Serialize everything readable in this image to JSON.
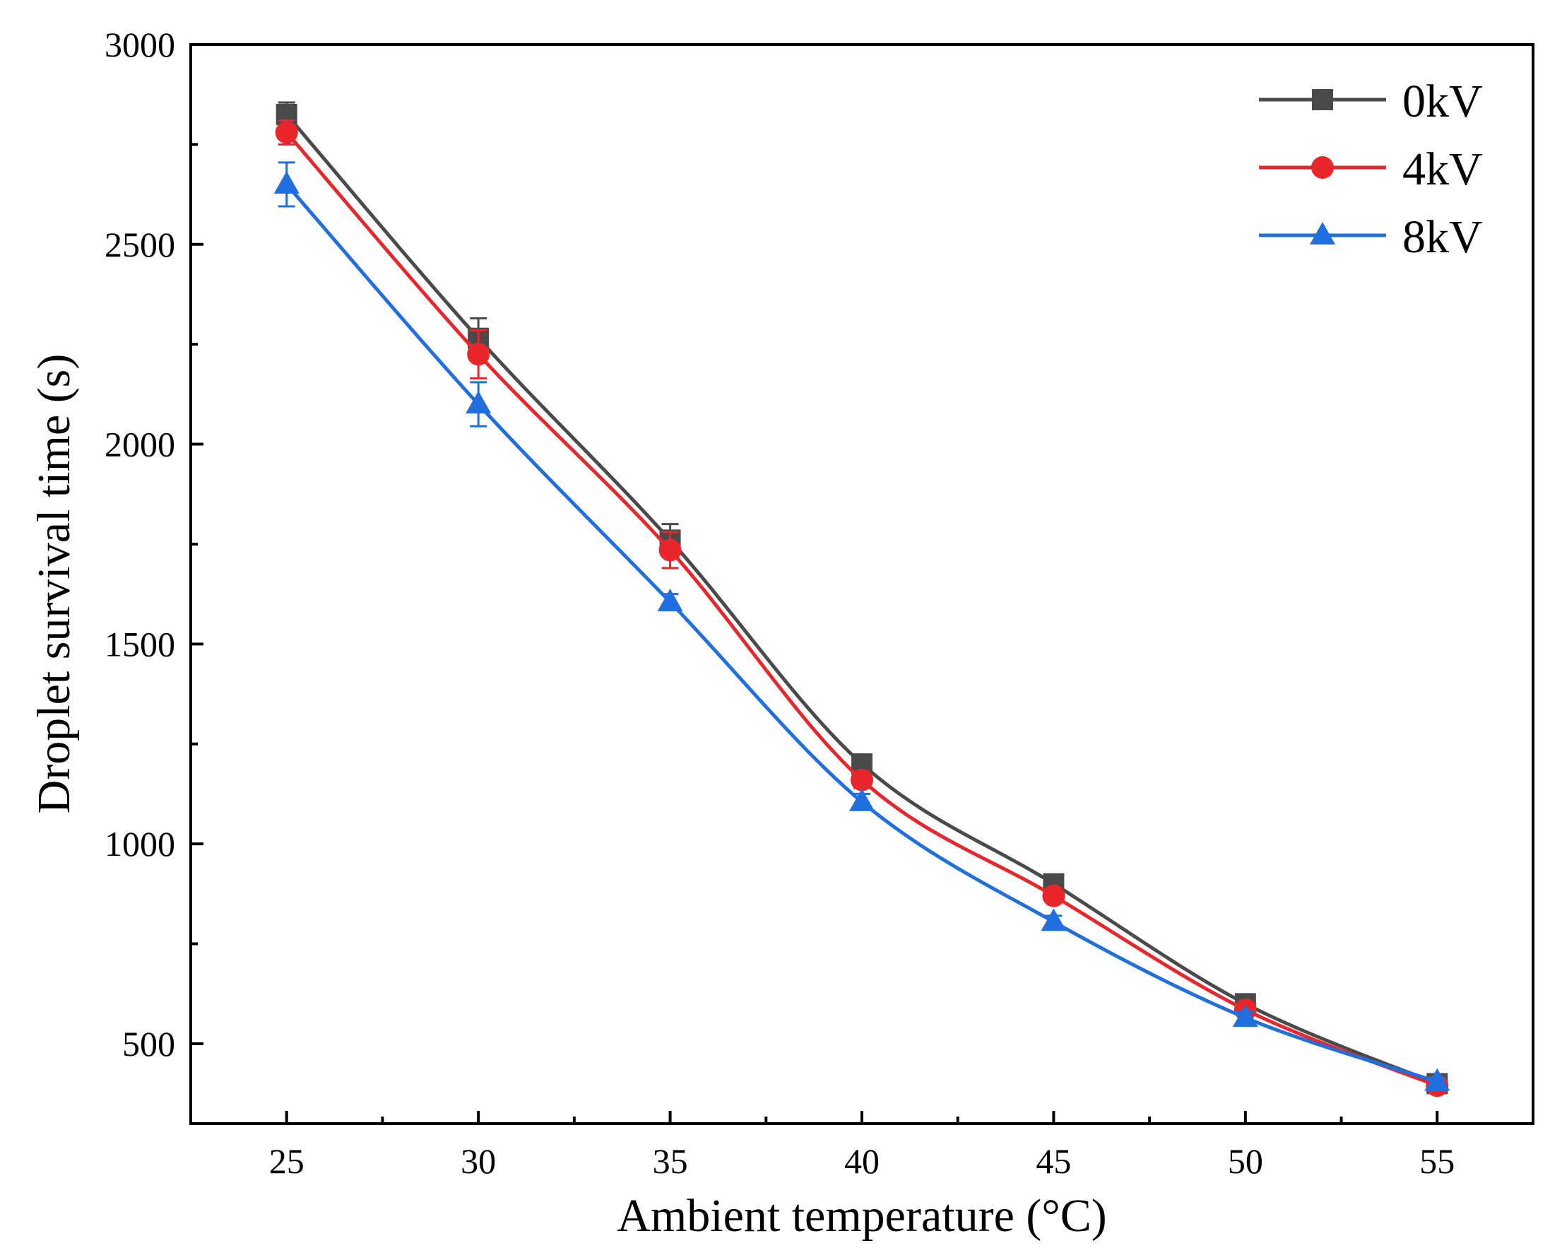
{
  "chart_data": {
    "type": "line",
    "xlabel": "Ambient temperature (°C)",
    "ylabel": "Droplet survival time (s)",
    "x": [
      25,
      30,
      35,
      40,
      45,
      50,
      55
    ],
    "x_tick_labels": [
      "25",
      "30",
      "35",
      "40",
      "45",
      "50",
      "55"
    ],
    "y_tick_labels": [
      "500",
      "1000",
      "1500",
      "2000",
      "2500",
      "3000"
    ],
    "y_ticks": [
      500,
      1000,
      1500,
      2000,
      2500,
      3000
    ],
    "xlim": [
      22.5,
      57.5
    ],
    "ylim": [
      300,
      3000
    ],
    "legend_position": "top-right",
    "series": [
      {
        "name": "0kV",
        "color": "#4a4a4a",
        "marker": "square",
        "values": [
          2825,
          2265,
          1760,
          1200,
          900,
          600,
          400
        ],
        "errors": [
          30,
          50,
          40,
          20,
          15,
          15,
          10
        ]
      },
      {
        "name": "4kV",
        "color": "#e8262b",
        "marker": "circle",
        "values": [
          2780,
          2225,
          1735,
          1160,
          870,
          585,
          395
        ],
        "errors": [
          30,
          60,
          45,
          20,
          15,
          15,
          10
        ]
      },
      {
        "name": "8kV",
        "color": "#1f6fe0",
        "marker": "triangle",
        "values": [
          2650,
          2100,
          1605,
          1105,
          805,
          565,
          405
        ],
        "errors": [
          55,
          55,
          20,
          20,
          15,
          15,
          10
        ]
      }
    ]
  }
}
